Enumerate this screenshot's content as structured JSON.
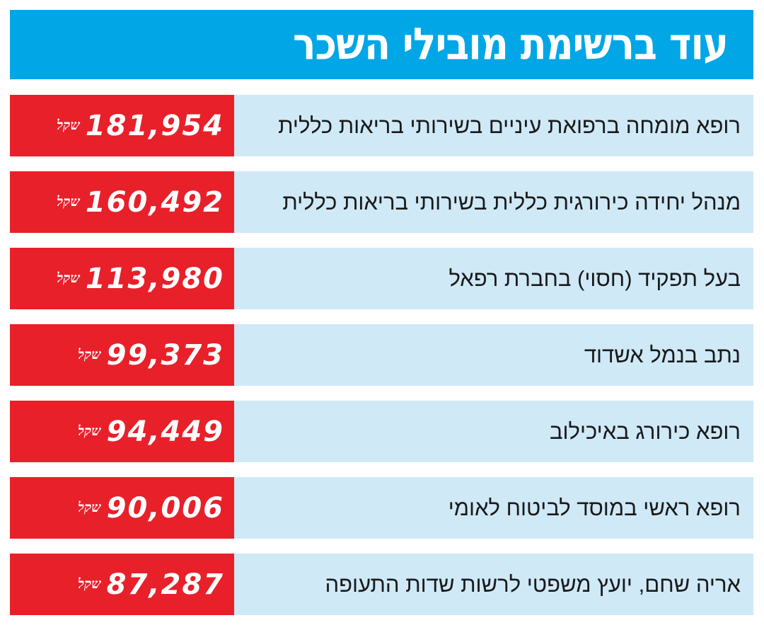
{
  "header": {
    "title": "עוד ברשימת מובילי השכר"
  },
  "colors": {
    "header_bg": "#00a6e6",
    "row_label_bg": "#cfe9f7",
    "row_value_bg": "#e8202a"
  },
  "rows": [
    {
      "label": "רופא מומחה ברפואת עיניים בשירותי בריאות כללית",
      "value": "181,954",
      "unit": "שקל"
    },
    {
      "label": "מנהל יחידה כירורגית כללית בשירותי בריאות כללית",
      "value": "160,492",
      "unit": "שקל"
    },
    {
      "label": "בעל תפקיד (חסוי) בחברת רפאל",
      "value": "113,980",
      "unit": "שקל"
    },
    {
      "label": "נתב בנמל אשדוד",
      "value": "99,373",
      "unit": "שקל"
    },
    {
      "label": "רופא כירורג באיכילוב",
      "value": "94,449",
      "unit": "שקל"
    },
    {
      "label": "רופא ראשי במוסד לביטוח לאומי",
      "value": "90,006",
      "unit": "שקל"
    },
    {
      "label": "אריה שחם, יועץ משפטי לרשות שדות התעופה",
      "value": "87,287",
      "unit": "שקל"
    }
  ]
}
